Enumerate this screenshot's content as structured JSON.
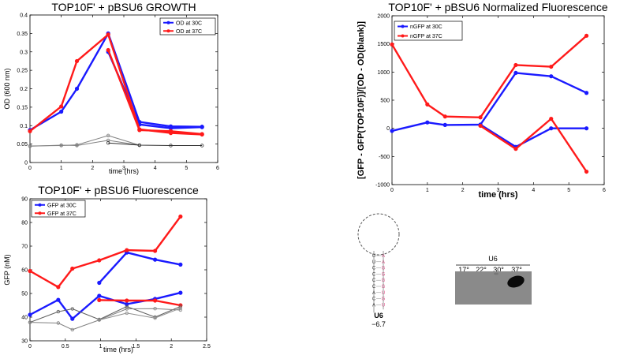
{
  "chart_data": [
    {
      "id": "growth",
      "type": "line",
      "title": "TOP10F' + pBSU6 GROWTH",
      "xlabel": "time (hrs)",
      "ylabel": "OD (600 nm)",
      "xlim": [
        0,
        6
      ],
      "ylim": [
        0,
        0.4
      ],
      "xticks": [
        "0",
        "1",
        "2",
        "3",
        "4",
        "5",
        "6"
      ],
      "yticks": [
        "0",
        "0.05",
        "0.1",
        "0.15",
        "0.2",
        "0.25",
        "0.3",
        "0.35",
        "0.4"
      ],
      "legend_position": "top-right",
      "legend": [
        {
          "label": "OD at 30C",
          "color": "#1a1aff"
        },
        {
          "label": "OD at 37C",
          "color": "#ff1a1a"
        }
      ],
      "series": [
        {
          "name": "OD at 30C",
          "color": "#1a1aff",
          "x": [
            0,
            1,
            1.5,
            2.5,
            3.5,
            4.5,
            5.5
          ],
          "y": [
            0.088,
            0.138,
            0.2,
            0.35,
            0.11,
            0.098,
            0.097
          ]
        },
        {
          "name": "OD at 30C",
          "color": "#1a1aff",
          "x": [
            2.5,
            3.5,
            4.5,
            5.5
          ],
          "y": [
            0.3,
            0.103,
            0.093,
            0.096
          ]
        },
        {
          "name": "OD at 37C",
          "color": "#ff1a1a",
          "x": [
            0,
            1,
            1.5,
            2.5,
            3.5,
            4.5,
            5.5
          ],
          "y": [
            0.085,
            0.152,
            0.275,
            0.347,
            0.09,
            0.08,
            0.076
          ]
        },
        {
          "name": "OD at 37C",
          "color": "#ff1a1a",
          "x": [
            2.5,
            3.5,
            4.5,
            5.5
          ],
          "y": [
            0.305,
            0.088,
            0.085,
            0.077
          ]
        },
        {
          "name": "",
          "color": "#808080",
          "x": [
            0,
            1,
            1.5,
            2.5,
            3.5
          ],
          "y": [
            0.045,
            0.046,
            0.048,
            0.073,
            0.047
          ]
        },
        {
          "name": "",
          "color": "#808080",
          "x": [
            0,
            1,
            1.5,
            2.5,
            3.5
          ],
          "y": [
            0.044,
            0.047,
            0.046,
            0.06,
            0.047
          ]
        },
        {
          "name": "",
          "color": "#303030",
          "x": [
            2.5,
            3.5,
            4.5,
            5.5
          ],
          "y": [
            0.053,
            0.047,
            0.046,
            0.046
          ]
        }
      ]
    },
    {
      "id": "fluor",
      "type": "line",
      "title": "TOP10F' + pBSU6 Fluorescence",
      "xlabel": "time (hrs)",
      "ylabel": "GFP (nM)",
      "xlim": [
        0,
        2.5
      ],
      "ylim": [
        30,
        90
      ],
      "xticks": [
        "0",
        "0.5",
        "1",
        "1.5",
        "2",
        "2.5"
      ],
      "yticks": [
        "30",
        "40",
        "50",
        "60",
        "70",
        "80",
        "90"
      ],
      "legend_position": "top-left",
      "legend": [
        {
          "label": "GFP at 30C",
          "color": "#1a1aff"
        },
        {
          "label": "GFP at 37C",
          "color": "#ff1a1a"
        }
      ],
      "series": [
        {
          "name": "GFP at 30C",
          "color": "#1a1aff",
          "x": [
            0,
            0.4,
            0.6,
            0.98,
            1.37,
            1.77,
            2.13
          ],
          "y": [
            41,
            47.3,
            39.3,
            49,
            45.5,
            47.7,
            50.3
          ]
        },
        {
          "name": "GFP at 30C",
          "color": "#1a1aff",
          "x": [
            0.98,
            1.37,
            1.77,
            2.13
          ],
          "y": [
            54.5,
            67.3,
            64.3,
            62.2
          ]
        },
        {
          "name": "GFP at 37C",
          "color": "#ff1a1a",
          "x": [
            0,
            0.4,
            0.6,
            0.98,
            1.37,
            1.77,
            2.13
          ],
          "y": [
            59.5,
            52.7,
            60.5,
            64,
            68.3,
            68,
            82.5
          ]
        },
        {
          "name": "GFP at 37C",
          "color": "#ff1a1a",
          "x": [
            0.98,
            1.37,
            1.77,
            2.13
          ],
          "y": [
            47.2,
            47,
            47,
            45
          ]
        },
        {
          "name": "",
          "color": "#606060",
          "x": [
            0,
            0.4,
            0.6,
            0.98,
            1.37,
            1.77,
            2.13
          ],
          "y": [
            37.8,
            42.3,
            43.5,
            39,
            44.5,
            40,
            44.5
          ]
        },
        {
          "name": "",
          "color": "#808080",
          "x": [
            0,
            0.4,
            0.6,
            0.98,
            1.37,
            1.77,
            2.13
          ],
          "y": [
            37.8,
            37.5,
            34.7,
            38.8,
            43.5,
            43.6,
            43
          ]
        },
        {
          "name": "",
          "color": "#909090",
          "x": [
            0.98,
            1.37,
            1.77,
            2.13
          ],
          "y": [
            38.8,
            41.7,
            39.6,
            43.8
          ]
        }
      ]
    },
    {
      "id": "norm",
      "type": "line",
      "title": "TOP10F' + pBSU6 Normalized Fluorescence",
      "xlabel": "time (hrs)",
      "ylabel": "[GFP - GFP(TOP10F)]/[OD - OD(blank)]",
      "xlim": [
        0,
        6
      ],
      "ylim": [
        -1000,
        2000
      ],
      "xticks": [
        "0",
        "1",
        "2",
        "3",
        "4",
        "5",
        "6"
      ],
      "yticks": [
        "-1000",
        "-500",
        "0",
        "500",
        "1000",
        "1500",
        "2000"
      ],
      "legend_position": "top-left",
      "legend": [
        {
          "label": "nGFP at 30C",
          "color": "#1a1aff"
        },
        {
          "label": "nGFP at 37C",
          "color": "#ff1a1a"
        }
      ],
      "series": [
        {
          "name": "nGFP at 30C",
          "color": "#1a1aff",
          "x": [
            0,
            1,
            1.5,
            2.5,
            3.5,
            4.5,
            5.5
          ],
          "y": [
            -45,
            105,
            60,
            65,
            985,
            925,
            630
          ]
        },
        {
          "name": "nGFP at 30C",
          "color": "#1a1aff",
          "x": [
            2.5,
            3.5,
            4.5,
            5.5
          ],
          "y": [
            65,
            -330,
            0,
            0
          ]
        },
        {
          "name": "nGFP at 37C",
          "color": "#ff1a1a",
          "x": [
            0,
            1,
            1.5,
            2.5,
            3.5,
            4.5,
            5.5
          ],
          "y": [
            1490,
            425,
            210,
            195,
            1125,
            1095,
            1645
          ]
        },
        {
          "name": "nGFP at 37C",
          "color": "#ff1a1a",
          "x": [
            2.5,
            3.5,
            4.5,
            5.5
          ],
          "y": [
            45,
            -365,
            170,
            -770
          ]
        }
      ]
    }
  ],
  "hairpin": {
    "stem_left": [
      "U",
      "U",
      "C",
      "C",
      "C",
      "C",
      "A",
      "C",
      "A"
    ],
    "stem_right": [
      "A",
      "A",
      "G",
      "G",
      "G",
      "G",
      "U",
      "G",
      "U"
    ],
    "name": "U6",
    "energy": "−6.7",
    "colors": {
      "base": "#303030",
      "pair": "#e0508a",
      "energy": "#e03020"
    }
  },
  "blot": {
    "title": "U6",
    "lanes": [
      "17°",
      "22°",
      "30°",
      "37°"
    ],
    "colors": {
      "background": "#8a8a8a",
      "band": "#0a0a0a"
    }
  }
}
